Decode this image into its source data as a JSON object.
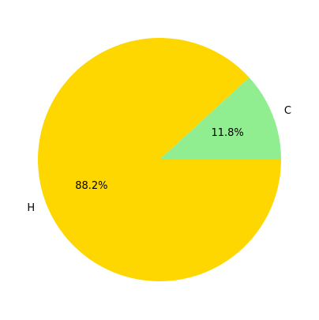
{
  "chart_data": {
    "type": "pie",
    "title": "",
    "startangle": 0,
    "counterclock": false,
    "slices": [
      {
        "label": "H",
        "percent_label": "88.2%",
        "value": 88.2,
        "color": "#ffd700"
      },
      {
        "label": "C",
        "percent_label": "11.8%",
        "value": 11.8,
        "color": "#90ee90"
      }
    ]
  }
}
